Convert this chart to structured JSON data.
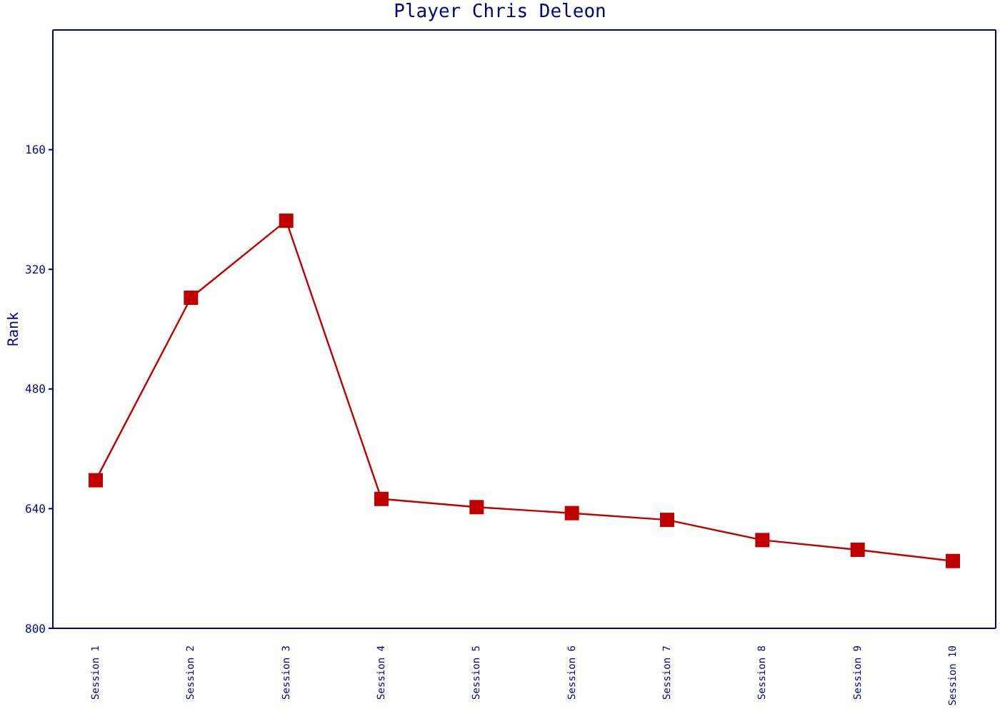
{
  "chart_data": {
    "type": "line",
    "title": "Player Chris Deleon",
    "ylabel": "Rank",
    "categories": [
      "Session 1",
      "Session 2",
      "Session 3",
      "Session 4",
      "Session 5",
      "Session 6",
      "Session 7",
      "Session 8",
      "Session 9",
      "Session 10"
    ],
    "series": [
      {
        "color": "#c00000",
        "values": [
          602,
          358,
          255,
          627,
          638,
          646,
          655,
          682,
          695,
          710
        ]
      }
    ],
    "ylim": [
      800,
      0
    ],
    "yticks": [
      160,
      320,
      480,
      640,
      800
    ],
    "grid": false,
    "legend": false,
    "marker": "square",
    "line_style": "solid"
  }
}
